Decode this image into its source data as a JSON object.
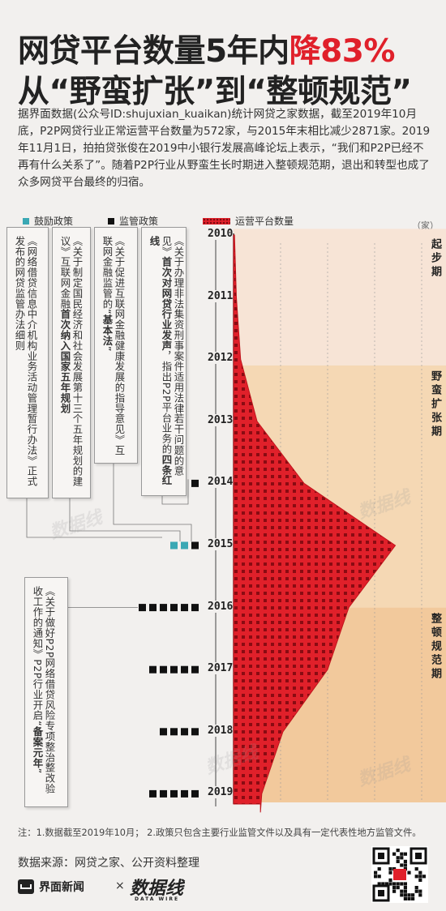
{
  "title": {
    "line1_prefix": "网贷平台数量5年内",
    "line1_highlight": "降83%",
    "line2": "从“野蛮扩张”到“整顿规范”"
  },
  "intro": "据界面数据(公众号ID:shujuxian_kuaikan)统计网贷之家数据，截至2019年10月底，P2P网贷行业正常运营平台数量为572家，与2015年末相比减少2871家。2019年11月1日，拍拍贷张俊在2019中小银行发展高峰论坛上表示，“我们和P2P已经不再有什么关系了”。随着P2P行业从野蛮生长时期进入整顿规范期，退出和转型也成了众多网贷平台最终的归宿。",
  "legend": {
    "encourage": "鼓励政策",
    "regulate": "监管政策",
    "platforms": "运营平台数量"
  },
  "colors": {
    "encourage": "#3aa8b4",
    "regulate": "#111111",
    "platforms": "#e0202a",
    "phase_start": "#f7e4d6",
    "phase_expand": "#f5d8b4",
    "phase_rectify": "#f2c99c"
  },
  "unit": "（家）",
  "phases": [
    {
      "label": "起步期"
    },
    {
      "label": "野蛮扩张期"
    },
    {
      "label": "整顿规范期"
    }
  ],
  "chart_data": {
    "type": "area",
    "title": "",
    "xlabel": "",
    "ylabel": "",
    "orientation": "vertical-time",
    "axis_ticks": [
      "0",
      "1000",
      "2000",
      "3000",
      "4000"
    ],
    "xlim": [
      0,
      4000
    ],
    "years": [
      "2010",
      "2011",
      "2012",
      "2013",
      "2014",
      "2015",
      "2016",
      "2017",
      "2018",
      "2019"
    ],
    "series": [
      {
        "name": "运营平台数量",
        "points": [
          {
            "t": 2010.0,
            "v": 20
          },
          {
            "t": 2011.0,
            "v": 60
          },
          {
            "t": 2012.0,
            "v": 150
          },
          {
            "t": 2013.0,
            "v": 500
          },
          {
            "t": 2014.0,
            "v": 1500
          },
          {
            "t": 2015.0,
            "v": 3440
          },
          {
            "t": 2016.0,
            "v": 2450
          },
          {
            "t": 2017.0,
            "v": 2000
          },
          {
            "t": 2018.0,
            "v": 1050
          },
          {
            "t": 2019.0,
            "v": 600
          },
          {
            "t": 2019.3,
            "v": 572
          }
        ]
      }
    ],
    "policy_markers": [
      {
        "year": "2014",
        "encourage": 0,
        "regulate": 1
      },
      {
        "year": "2015",
        "encourage": 2,
        "regulate": 1
      },
      {
        "year": "2016",
        "encourage": 0,
        "regulate": 6
      },
      {
        "year": "2017",
        "encourage": 0,
        "regulate": 5
      },
      {
        "year": "2018",
        "encourage": 0,
        "regulate": 4
      },
      {
        "year": "2019",
        "encourage": 0,
        "regulate": 5
      }
    ]
  },
  "policies": [
    {
      "text": "《网络借贷信息中介机构业务活动管理暂行办法》正式发布的网贷监管办法细则"
    },
    {
      "prefix": "《关于制定国民经济和社会发展第十三个五年规划的建议》互联网金融",
      "bold": "首次纳入国家五年规划"
    },
    {
      "prefix": "《关于促进互联网金融健康发展的指导意见》互联网金融监管的“",
      "bold": "基本法",
      "suffix": "”"
    },
    {
      "prefix": "《关于办理非法集资刑事案件适用法律若干问题的意见》",
      "bold": "首次对网贷行业发声",
      "mid": "，指出P2P平台业务的",
      "bold2": "四条红线"
    },
    {
      "prefix": "《关于做好P2P网络借贷风险专项整治整改验收工作的通知》P2P行业开启“",
      "bold": "备案元年",
      "suffix": "”"
    }
  ],
  "watermark": "数据线",
  "footnote": "注：1.数据截至2019年10月；  2.政策只包含主要行业监管文件以及具有一定代表性地方监管文件。",
  "source": "数据来源：网贷之家、公开资料整理",
  "logos": {
    "jiemian": "界面新闻",
    "times": "×",
    "shujuxian": "数据线",
    "shujuxian_en": "DATA WIRE"
  }
}
